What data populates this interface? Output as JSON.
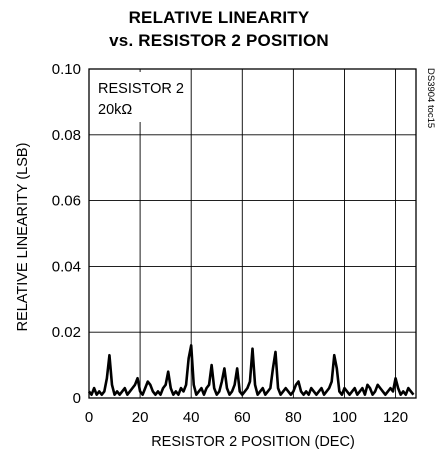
{
  "chart_data": {
    "type": "line",
    "title_line1": "RELATIVE LINEARITY",
    "title_line2": "vs. RESISTOR 2 POSITION",
    "xlabel": "RESISTOR 2 POSITION (DEC)",
    "ylabel": "RELATIVE LINEARITY (LSB)",
    "xlim": [
      0,
      128
    ],
    "ylim": [
      0,
      0.1
    ],
    "x_ticks": [
      "0",
      "20",
      "40",
      "60",
      "80",
      "100",
      "120"
    ],
    "y_ticks": [
      "0",
      "0.02",
      "0.04",
      "0.06",
      "0.08",
      "0.10"
    ],
    "grid": true,
    "annotation_line1": "RESISTOR 2",
    "annotation_line2": "20kΩ",
    "side_label": "DS3904 toc15",
    "series": [
      {
        "color": "#000000",
        "x": [
          0,
          1,
          2,
          3,
          4,
          5,
          6,
          7,
          8,
          9,
          10,
          11,
          12,
          13,
          14,
          15,
          16,
          17,
          18,
          19,
          20,
          21,
          22,
          23,
          24,
          25,
          26,
          27,
          28,
          29,
          30,
          31,
          32,
          33,
          34,
          35,
          36,
          37,
          38,
          39,
          40,
          41,
          42,
          43,
          44,
          45,
          46,
          47,
          48,
          49,
          50,
          51,
          52,
          53,
          54,
          55,
          56,
          57,
          58,
          59,
          60,
          61,
          62,
          63,
          64,
          65,
          66,
          67,
          68,
          69,
          70,
          71,
          72,
          73,
          74,
          75,
          76,
          77,
          78,
          79,
          80,
          81,
          82,
          83,
          84,
          85,
          86,
          87,
          88,
          89,
          90,
          91,
          92,
          93,
          94,
          95,
          96,
          97,
          98,
          99,
          100,
          101,
          102,
          103,
          104,
          105,
          106,
          107,
          108,
          109,
          110,
          111,
          112,
          113,
          114,
          115,
          116,
          117,
          118,
          119,
          120,
          121,
          122,
          123,
          124,
          125,
          126,
          127
        ],
        "values": [
          0.002,
          0.001,
          0.003,
          0.001,
          0.002,
          0.001,
          0.002,
          0.006,
          0.013,
          0.004,
          0.001,
          0.002,
          0.001,
          0.002,
          0.003,
          0.001,
          0.002,
          0.003,
          0.004,
          0.006,
          0.002,
          0.001,
          0.003,
          0.005,
          0.004,
          0.002,
          0.001,
          0.002,
          0.001,
          0.003,
          0.004,
          0.008,
          0.003,
          0.001,
          0.002,
          0.001,
          0.003,
          0.002,
          0.004,
          0.012,
          0.016,
          0.004,
          0.001,
          0.002,
          0.003,
          0.001,
          0.003,
          0.004,
          0.01,
          0.003,
          0.001,
          0.002,
          0.005,
          0.009,
          0.003,
          0.001,
          0.002,
          0.004,
          0.009,
          0.002,
          0.001,
          0.002,
          0.003,
          0.005,
          0.015,
          0.004,
          0.001,
          0.002,
          0.003,
          0.001,
          0.002,
          0.003,
          0.009,
          0.014,
          0.003,
          0.001,
          0.002,
          0.003,
          0.002,
          0.001,
          0.002,
          0.004,
          0.005,
          0.002,
          0.001,
          0.002,
          0.001,
          0.003,
          0.002,
          0.001,
          0.002,
          0.003,
          0.001,
          0.002,
          0.003,
          0.005,
          0.013,
          0.009,
          0.002,
          0.001,
          0.003,
          0.002,
          0.001,
          0.002,
          0.003,
          0.001,
          0.002,
          0.003,
          0.001,
          0.004,
          0.003,
          0.001,
          0.002,
          0.004,
          0.003,
          0.002,
          0.001,
          0.002,
          0.003,
          0.002,
          0.006,
          0.003,
          0.001,
          0.002,
          0.001,
          0.003,
          0.002,
          0.001
        ]
      }
    ]
  }
}
